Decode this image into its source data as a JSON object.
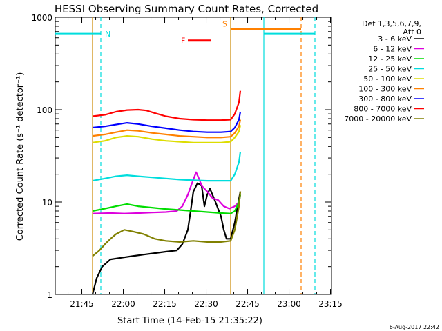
{
  "chart_data": {
    "type": "line",
    "title": "HESSI Observing Summary Count Rates, Corrected",
    "xlabel": "Start Time (14-Feb-15 21:35:22)",
    "ylabel": "Corrected Count Rate (s⁻¹ detector⁻¹)",
    "ylog": true,
    "ylim": [
      1,
      1000
    ],
    "xlim_minutes": [
      0,
      100
    ],
    "x_ticks": [
      {
        "label": "21:45",
        "t": 9.63
      },
      {
        "label": "22:00",
        "t": 24.63
      },
      {
        "label": "22:15",
        "t": 39.63
      },
      {
        "label": "22:30",
        "t": 54.63
      },
      {
        "label": "22:45",
        "t": 69.63
      },
      {
        "label": "23:00",
        "t": 84.63
      },
      {
        "label": "23:15",
        "t": 99.63
      }
    ],
    "y_ticks": [
      {
        "label": "1",
        "v": 1
      },
      {
        "label": "10",
        "v": 10
      },
      {
        "label": "100",
        "v": 100
      },
      {
        "label": "1000",
        "v": 1000
      }
    ],
    "legend_header": [
      "Det 1,3,5,6,7,9,",
      "Att 0"
    ],
    "series": [
      {
        "name": "3 - 6 keV",
        "color": "#000000",
        "points": [
          [
            13.5,
            1.0
          ],
          [
            15,
            1.5
          ],
          [
            17,
            2.0
          ],
          [
            20,
            2.4
          ],
          [
            24,
            2.5
          ],
          [
            28,
            2.6
          ],
          [
            32,
            2.7
          ],
          [
            36,
            2.8
          ],
          [
            40,
            2.9
          ],
          [
            44,
            3.0
          ],
          [
            46,
            3.5
          ],
          [
            48,
            5
          ],
          [
            49,
            8
          ],
          [
            50,
            13
          ],
          [
            51.5,
            16
          ],
          [
            53,
            15
          ],
          [
            54,
            9
          ],
          [
            55,
            12
          ],
          [
            56,
            14
          ],
          [
            58,
            10
          ],
          [
            60,
            7
          ],
          [
            61,
            5
          ],
          [
            62,
            4
          ],
          [
            63.5,
            4
          ],
          [
            65,
            6
          ],
          [
            66,
            9
          ],
          [
            67,
            13
          ]
        ]
      },
      {
        "name": "6 - 12 keV",
        "color": "#dd00dd",
        "points": [
          [
            13.5,
            7.5
          ],
          [
            20,
            7.6
          ],
          [
            25,
            7.5
          ],
          [
            30,
            7.6
          ],
          [
            35,
            7.7
          ],
          [
            40,
            7.8
          ],
          [
            44,
            8.0
          ],
          [
            46,
            9
          ],
          [
            48,
            12
          ],
          [
            49.5,
            16
          ],
          [
            51,
            21
          ],
          [
            52,
            18
          ],
          [
            53,
            15
          ],
          [
            55,
            13
          ],
          [
            57,
            11
          ],
          [
            59,
            10.5
          ],
          [
            61,
            9
          ],
          [
            63,
            8.5
          ],
          [
            65,
            9
          ],
          [
            66.5,
            10
          ],
          [
            67,
            12
          ]
        ]
      },
      {
        "name": "12 - 25 keV",
        "color": "#00dd00",
        "points": [
          [
            13.5,
            8.0
          ],
          [
            18,
            8.5
          ],
          [
            22,
            9
          ],
          [
            26,
            9.5
          ],
          [
            30,
            9
          ],
          [
            35,
            8.7
          ],
          [
            40,
            8.4
          ],
          [
            45,
            8.2
          ],
          [
            50,
            8.0
          ],
          [
            55,
            7.8
          ],
          [
            60,
            7.6
          ],
          [
            63.5,
            7.5
          ],
          [
            65,
            8
          ],
          [
            66.5,
            10
          ],
          [
            67,
            12
          ]
        ]
      },
      {
        "name": "25 - 50 keV",
        "color": "#00dddd",
        "points": [
          [
            13.5,
            17
          ],
          [
            18,
            18
          ],
          [
            22,
            19
          ],
          [
            26,
            19.5
          ],
          [
            30,
            19
          ],
          [
            35,
            18.5
          ],
          [
            40,
            18
          ],
          [
            45,
            17.5
          ],
          [
            50,
            17.2
          ],
          [
            55,
            17
          ],
          [
            60,
            17
          ],
          [
            63.5,
            17
          ],
          [
            65,
            20
          ],
          [
            66.5,
            27
          ],
          [
            67,
            35
          ]
        ]
      },
      {
        "name": "50 - 100 keV",
        "color": "#dddd00",
        "points": [
          [
            13.5,
            44
          ],
          [
            18,
            46
          ],
          [
            22,
            50
          ],
          [
            26,
            52
          ],
          [
            30,
            51
          ],
          [
            35,
            48
          ],
          [
            40,
            46
          ],
          [
            45,
            45
          ],
          [
            50,
            44
          ],
          [
            55,
            44
          ],
          [
            60,
            44
          ],
          [
            63.5,
            45
          ],
          [
            65,
            50
          ],
          [
            66.5,
            58
          ],
          [
            67,
            68
          ]
        ]
      },
      {
        "name": "100 - 300 keV",
        "color": "#ff8000",
        "points": [
          [
            13.5,
            52
          ],
          [
            18,
            54
          ],
          [
            22,
            57
          ],
          [
            26,
            60
          ],
          [
            30,
            59
          ],
          [
            35,
            56
          ],
          [
            40,
            54
          ],
          [
            45,
            52
          ],
          [
            50,
            51
          ],
          [
            55,
            50
          ],
          [
            60,
            50
          ],
          [
            63.5,
            51
          ],
          [
            65,
            56
          ],
          [
            66.5,
            66
          ],
          [
            67,
            78
          ]
        ]
      },
      {
        "name": "300 - 800 keV",
        "color": "#0000ff",
        "points": [
          [
            13.5,
            64
          ],
          [
            18,
            66
          ],
          [
            22,
            69
          ],
          [
            26,
            72
          ],
          [
            30,
            70
          ],
          [
            35,
            66
          ],
          [
            40,
            63
          ],
          [
            45,
            60
          ],
          [
            50,
            58
          ],
          [
            55,
            57
          ],
          [
            60,
            57
          ],
          [
            63.5,
            58
          ],
          [
            65,
            64
          ],
          [
            66.5,
            78
          ],
          [
            67,
            95
          ]
        ]
      },
      {
        "name": "800 - 7000 keV",
        "color": "#ff0000",
        "points": [
          [
            13.5,
            85
          ],
          [
            18,
            88
          ],
          [
            22,
            95
          ],
          [
            26,
            99
          ],
          [
            30,
            100
          ],
          [
            33,
            98
          ],
          [
            36,
            92
          ],
          [
            40,
            85
          ],
          [
            45,
            80
          ],
          [
            50,
            78
          ],
          [
            55,
            77
          ],
          [
            60,
            77
          ],
          [
            63.5,
            78
          ],
          [
            65,
            90
          ],
          [
            66.5,
            120
          ],
          [
            67,
            160
          ]
        ]
      },
      {
        "name": "7000 - 20000 keV",
        "color": "#808000",
        "points": [
          [
            13.5,
            2.6
          ],
          [
            16,
            3.0
          ],
          [
            18,
            3.5
          ],
          [
            20,
            4.0
          ],
          [
            22,
            4.5
          ],
          [
            25,
            5.0
          ],
          [
            28,
            4.8
          ],
          [
            32,
            4.5
          ],
          [
            36,
            4.0
          ],
          [
            40,
            3.8
          ],
          [
            45,
            3.7
          ],
          [
            50,
            3.8
          ],
          [
            55,
            3.7
          ],
          [
            60,
            3.7
          ],
          [
            63.5,
            3.8
          ],
          [
            65,
            5
          ],
          [
            66.5,
            9
          ],
          [
            67,
            13
          ]
        ]
      }
    ],
    "annotations": [
      {
        "label": "N",
        "color": "#00dddd",
        "t_line": 16.5,
        "y": 660,
        "bar": [
          0,
          16.5
        ]
      },
      {
        "label": "F",
        "color": "#ff0000",
        "bar": [
          48,
          56.5
        ],
        "y": 560
      },
      {
        "label": "S",
        "color": "#ff8000",
        "bar": [
          63.5,
          89
        ],
        "y": 750
      }
    ],
    "overlay_lines": [
      {
        "t": 13.5,
        "color": "#cc8800",
        "style": "solid"
      },
      {
        "t": 63.5,
        "color": "#cc8800",
        "style": "solid"
      },
      {
        "t": 75.5,
        "color": "#00dddd",
        "style": "solid"
      },
      {
        "t": 89,
        "color": "#ff8000",
        "style": "dashed"
      },
      {
        "t": 94,
        "color": "#00dddd",
        "style": "dashed"
      }
    ],
    "cyan_top_segments": [
      [
        0,
        16.5
      ],
      [
        75.5,
        94
      ]
    ],
    "timestamp": "6-Aug-2017 22:42"
  }
}
